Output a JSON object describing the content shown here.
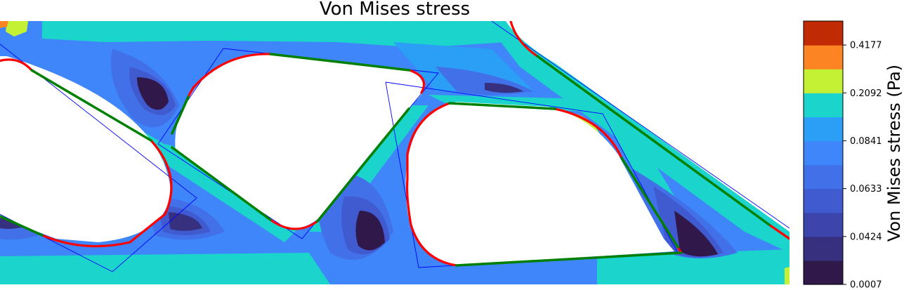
{
  "chart_data": {
    "type": "heatmap",
    "title": "Von Mises stress",
    "colorbar": {
      "label": "Von Mises stress (Pa)",
      "tick_labels": [
        "0.0007",
        "0.0424",
        "0.0633",
        "0.0841",
        "0.2092",
        "0.4177"
      ],
      "levels": [
        {
          "color": "#30184a"
        },
        {
          "color": "#36307f"
        },
        {
          "color": "#3d45ad"
        },
        {
          "color": "#405ad0"
        },
        {
          "color": "#4170e8"
        },
        {
          "color": "#3e86f9"
        },
        {
          "color": "#2b9ef5"
        },
        {
          "color": "#1bd4cc"
        },
        {
          "color": "#c4f134"
        },
        {
          "color": "#fd8423"
        },
        {
          "color": "#c02a04"
        }
      ]
    },
    "overlay": {
      "boundary_arcs_color": "#ff0000",
      "boundary_lines_color": "#008000",
      "frame_color": "#0000ff"
    },
    "legend": "none",
    "grid": false
  }
}
